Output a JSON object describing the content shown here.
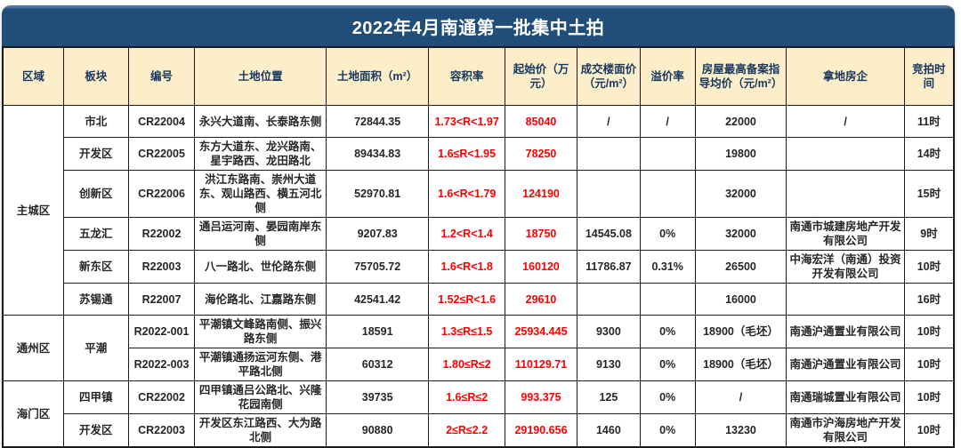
{
  "header": {
    "title": "2022年4月南通第一批集中土拍"
  },
  "colors": {
    "title_bar_bg": "#214e78",
    "title_text": "#ffffff",
    "header_bg": "#fdeeca",
    "header_text": "#17365d",
    "body_text": "#262626",
    "highlight_red": "#fe0000",
    "grid_border": "#1a1a1a"
  },
  "chart_data": {
    "type": "table",
    "title": "2022年4月南通第一批集中土拍",
    "columns": [
      {
        "key": "region",
        "label": "区域",
        "width": "6.4%",
        "red": false
      },
      {
        "key": "plate",
        "label": "板块",
        "width": "6.8%",
        "red": false
      },
      {
        "key": "code",
        "label": "编号",
        "width": "7.0%",
        "red": false
      },
      {
        "key": "location",
        "label": "土地位置",
        "width": "13.8%",
        "red": false
      },
      {
        "key": "area",
        "label": "土地面积（m²）",
        "width": "10.8%",
        "red": false
      },
      {
        "key": "far",
        "label": "容积率",
        "width": "8.0%",
        "red": true
      },
      {
        "key": "start_price",
        "label": "起始价（万元）",
        "width": "7.6%",
        "red": true
      },
      {
        "key": "floor_price",
        "label": "成交楼面价（元/m²）",
        "width": "6.6%",
        "red": false
      },
      {
        "key": "premium",
        "label": "溢价率",
        "width": "5.8%",
        "red": false
      },
      {
        "key": "guide_price",
        "label": "房屋最高备案指导均价（元/m²）",
        "width": "9.6%",
        "red": false
      },
      {
        "key": "developer",
        "label": "拿地房企",
        "width": "12.4%",
        "red": false
      },
      {
        "key": "time",
        "label": "竞拍时间",
        "width": "5.2%",
        "red": false
      }
    ],
    "rows": [
      {
        "region": "主城区",
        "region_span": 6,
        "plate": "市北",
        "code": "CR22004",
        "location": "永兴大道南、长泰路东侧",
        "area": "72844.35",
        "far": "1.73<R<1.97",
        "start_price": "85040",
        "floor_price": "/",
        "premium": "/",
        "guide_price": "22000",
        "developer": "/",
        "time": "11时"
      },
      {
        "plate": "开发区",
        "code": "CR22005",
        "location": "东方大道东、龙兴路南、星宇路西、龙田路北",
        "area": "89434.83",
        "far": "1.6≤R<1.95",
        "start_price": "78250",
        "floor_price": "",
        "premium": "",
        "guide_price": "19800",
        "developer": "",
        "time": "14时"
      },
      {
        "plate": "创新区",
        "code": "CR22006",
        "location": "洪江东路南、崇州大道东、观山路西、横五河北侧",
        "area": "52970.81",
        "far": "1.6<R<1.79",
        "start_price": "124190",
        "floor_price": "",
        "premium": "",
        "guide_price": "32000",
        "developer": "",
        "time": "15时"
      },
      {
        "plate": "五龙汇",
        "code": "R22002",
        "location": "通吕运河南、晏园南岸东侧",
        "area": "9207.83",
        "far": "1.2<R<1.4",
        "start_price": "18750",
        "floor_price": "14545.08",
        "premium": "0%",
        "guide_price": "32000",
        "developer": "南通市城建房地产开发有限公司",
        "time": "9时"
      },
      {
        "plate": "新东区",
        "code": "R22003",
        "location": "八一路北、世伦路东侧",
        "area": "75705.72",
        "far": "1.6<R<1.8",
        "start_price": "160120",
        "floor_price": "11786.87",
        "premium": "0.31%",
        "guide_price": "26500",
        "developer": "中海宏洋（南通）投资开发有限公司",
        "time": "10时"
      },
      {
        "plate": "苏锡通",
        "code": "R22007",
        "location": "海伦路北、江嘉路东侧",
        "area": "42541.42",
        "far": "1.52≤R<1.6",
        "start_price": "29610",
        "floor_price": "",
        "premium": "",
        "guide_price": "16000",
        "developer": "",
        "time": "16时"
      },
      {
        "region": "通州区",
        "region_span": 2,
        "plate": "平潮",
        "plate_span": 2,
        "code": "R2022-001",
        "location": "平潮镇文峰路南侧、振兴路东侧",
        "area": "18591",
        "far": "1.3≤R≤1.5",
        "start_price": "25934.445",
        "floor_price": "9300",
        "premium": "0%",
        "guide_price": "18900（毛坯）",
        "developer": "南通沪通置业有限公司",
        "time": "10时"
      },
      {
        "code": "R2022-003",
        "location": "平潮镇通扬运河东侧、港平路北侧",
        "area": "60312",
        "far": "1.80≤R≤2",
        "start_price": "110129.71",
        "floor_price": "9130",
        "premium": "0%",
        "guide_price": "18900（毛坯）",
        "developer": "南通沪通置业有限公司",
        "time": "10时"
      },
      {
        "region": "海门区",
        "region_span": 2,
        "plate": "四甲镇",
        "code": "CR22002",
        "location": "四甲镇通吕公路北、兴隆花园南侧",
        "area": "39735",
        "far": "1.6≤R≤2",
        "start_price": "993.375",
        "floor_price": "125",
        "premium": "0%",
        "guide_price": "/",
        "developer": "南通瑞城置业有限公司",
        "time": "10时"
      },
      {
        "plate": "开发区",
        "code": "CR22003",
        "location": "开发区东江路西、大为路北侧",
        "area": "90880",
        "far": "2≤R≤2.2",
        "start_price": "29190.656",
        "floor_price": "1460",
        "premium": "0%",
        "guide_price": "13230",
        "developer": "南通市沪海房地产开发有限公司",
        "time": "10时"
      }
    ]
  }
}
